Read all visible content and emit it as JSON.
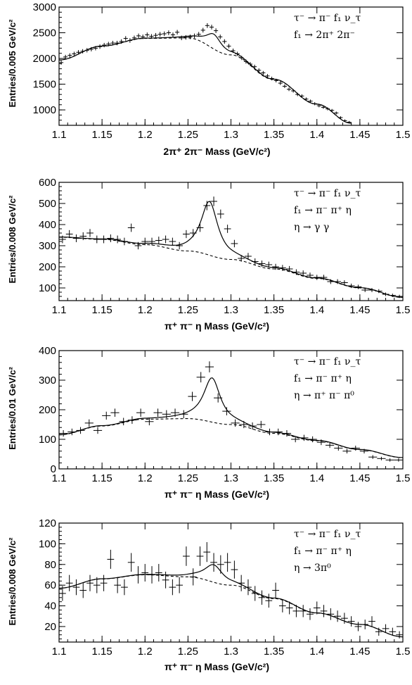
{
  "chart_data": [
    {
      "type": "scatter",
      "xlabel": "2π⁺ 2π⁻ Mass (GeV/c²)",
      "ylabel": "Entries/0.005 GeV/c²",
      "xlim": [
        1.1,
        1.5
      ],
      "ylim": [
        700,
        3000
      ],
      "x_ticks": [
        "1.1",
        "1.15",
        "1.2",
        "1.25",
        "1.3",
        "1.35",
        "1.4",
        "1.45",
        "1.5"
      ],
      "y_ticks": [
        "1000",
        "1500",
        "2000",
        "2500",
        "3000"
      ],
      "annotations": [
        "τ⁻ → π⁻ f₁ ν_τ",
        "f₁ → 2π⁺ 2π⁻"
      ],
      "peak": {
        "mean": 1.28,
        "width": 0.011,
        "height": 290
      },
      "background": [
        [
          1.1,
          1970
        ],
        [
          1.15,
          2240
        ],
        [
          1.2,
          2390
        ],
        [
          1.25,
          2400
        ],
        [
          1.3,
          2070
        ],
        [
          1.35,
          1590
        ],
        [
          1.4,
          1110
        ],
        [
          1.44,
          740
        ]
      ],
      "points": {
        "x": [
          1.1025,
          1.1075,
          1.1125,
          1.1175,
          1.1225,
          1.1275,
          1.1325,
          1.1375,
          1.1425,
          1.1475,
          1.1525,
          1.1575,
          1.1625,
          1.1675,
          1.1725,
          1.1775,
          1.1825,
          1.1875,
          1.1925,
          1.1975,
          1.2025,
          1.2075,
          1.2125,
          1.2175,
          1.2225,
          1.2275,
          1.2325,
          1.2375,
          1.2425,
          1.2475,
          1.2525,
          1.2575,
          1.2625,
          1.2675,
          1.2725,
          1.2775,
          1.2825,
          1.2875,
          1.2925,
          1.2975,
          1.3025,
          1.3075,
          1.3125,
          1.3175,
          1.3225,
          1.3275,
          1.3325,
          1.3375,
          1.3425,
          1.3475,
          1.3525,
          1.3575,
          1.3625,
          1.3675,
          1.3725,
          1.3775,
          1.3825,
          1.3875,
          1.3925,
          1.3975,
          1.4025,
          1.4075,
          1.4125,
          1.4175,
          1.4225,
          1.4275,
          1.4325,
          1.4375
        ],
        "y": [
          1920,
          2030,
          2060,
          2090,
          2120,
          2140,
          2160,
          2180,
          2200,
          2230,
          2260,
          2280,
          2300,
          2300,
          2330,
          2390,
          2350,
          2400,
          2440,
          2420,
          2460,
          2430,
          2450,
          2470,
          2480,
          2500,
          2460,
          2510,
          2400,
          2410,
          2420,
          2440,
          2470,
          2550,
          2640,
          2610,
          2540,
          2420,
          2330,
          2240,
          2150,
          2090,
          2010,
          1940,
          1890,
          1840,
          1770,
          1720,
          1660,
          1610,
          1570,
          1520,
          1460,
          1400,
          1370,
          1300,
          1270,
          1210,
          1170,
          1120,
          1080,
          1050,
          1020,
          990,
          940,
          850,
          790,
          760
        ]
      }
    },
    {
      "type": "scatter",
      "xlabel": "π⁺ π⁻ η Mass (GeV/c²)",
      "ylabel": "Entries/0.008 GeV/c²",
      "xlim": [
        1.1,
        1.5
      ],
      "ylim": [
        40,
        600
      ],
      "x_ticks": [
        "1.1",
        "1.15",
        "1.2",
        "1.25",
        "1.3",
        "1.35",
        "1.4",
        "1.45",
        "1.5"
      ],
      "y_ticks": [
        "100",
        "200",
        "300",
        "400",
        "500",
        "600"
      ],
      "annotations": [
        "τ⁻ → π⁻ f₁ ν_τ",
        "f₁ → π⁻ π⁺ η",
        "η → γ γ"
      ],
      "peak": {
        "mean": 1.275,
        "width": 0.012,
        "height": 255
      },
      "background": [
        [
          1.1,
          340
        ],
        [
          1.15,
          330
        ],
        [
          1.2,
          305
        ],
        [
          1.25,
          275
        ],
        [
          1.3,
          235
        ],
        [
          1.35,
          190
        ],
        [
          1.4,
          145
        ],
        [
          1.45,
          100
        ],
        [
          1.5,
          55
        ]
      ],
      "points": {
        "x": [
          1.104,
          1.112,
          1.12,
          1.128,
          1.136,
          1.144,
          1.152,
          1.16,
          1.168,
          1.176,
          1.184,
          1.192,
          1.2,
          1.208,
          1.216,
          1.224,
          1.232,
          1.24,
          1.248,
          1.256,
          1.264,
          1.272,
          1.28,
          1.288,
          1.296,
          1.304,
          1.312,
          1.32,
          1.328,
          1.336,
          1.344,
          1.352,
          1.36,
          1.368,
          1.376,
          1.384,
          1.392,
          1.4,
          1.408,
          1.416,
          1.424,
          1.432,
          1.44,
          1.448,
          1.456,
          1.464,
          1.472,
          1.48,
          1.488,
          1.496
        ],
        "y": [
          330,
          355,
          335,
          345,
          360,
          330,
          330,
          335,
          330,
          320,
          385,
          300,
          320,
          320,
          325,
          330,
          320,
          300,
          355,
          360,
          385,
          490,
          510,
          450,
          380,
          310,
          240,
          250,
          225,
          215,
          210,
          200,
          195,
          190,
          175,
          170,
          160,
          150,
          150,
          130,
          130,
          125,
          110,
          105,
          90,
          90,
          85,
          70,
          65,
          60
        ]
      }
    },
    {
      "type": "scatter",
      "xlabel": "π⁺ π⁻ η Mass (GeV/c²)",
      "ylabel": "Entries/0.01 GeV/c²",
      "xlim": [
        1.1,
        1.5
      ],
      "ylim": [
        0,
        400
      ],
      "x_ticks": [
        "1.1",
        "1.15",
        "1.2",
        "1.25",
        "1.3",
        "1.35",
        "1.4",
        "1.45",
        "1.5"
      ],
      "y_ticks": [
        "0",
        "100",
        "200",
        "300",
        "400"
      ],
      "annotations": [
        "τ⁻ → π⁻ f₁ ν_τ",
        "f₁ → π⁻ π⁺ η",
        "η → π⁺ π⁻ π⁰"
      ],
      "peak": {
        "mean": 1.278,
        "width": 0.012,
        "height": 150
      },
      "background": [
        [
          1.1,
          115
        ],
        [
          1.15,
          145
        ],
        [
          1.2,
          168
        ],
        [
          1.25,
          170
        ],
        [
          1.3,
          150
        ],
        [
          1.35,
          120
        ],
        [
          1.4,
          95
        ],
        [
          1.45,
          65
        ],
        [
          1.5,
          38
        ]
      ],
      "points": {
        "x": [
          1.105,
          1.115,
          1.125,
          1.135,
          1.145,
          1.155,
          1.165,
          1.175,
          1.185,
          1.195,
          1.205,
          1.215,
          1.225,
          1.235,
          1.245,
          1.255,
          1.265,
          1.275,
          1.285,
          1.295,
          1.305,
          1.315,
          1.325,
          1.335,
          1.345,
          1.355,
          1.365,
          1.375,
          1.385,
          1.395,
          1.405,
          1.415,
          1.425,
          1.435,
          1.445,
          1.455,
          1.465,
          1.475,
          1.485,
          1.495
        ],
        "y": [
          120,
          125,
          130,
          155,
          130,
          180,
          190,
          160,
          165,
          190,
          160,
          190,
          185,
          190,
          185,
          245,
          310,
          345,
          240,
          195,
          155,
          150,
          145,
          150,
          125,
          125,
          120,
          100,
          105,
          100,
          90,
          80,
          70,
          60,
          70,
          60,
          40,
          35,
          30,
          30
        ]
      }
    },
    {
      "type": "scatter",
      "xlabel": "π⁺ π⁻ η Mass (GeV/c²)",
      "ylabel": "Entries/0.008 GeV/c²",
      "xlim": [
        1.1,
        1.5
      ],
      "ylim": [
        5,
        120
      ],
      "x_ticks": [
        "1.1",
        "1.15",
        "1.2",
        "1.25",
        "1.3",
        "1.35",
        "1.4",
        "1.45",
        "1.5"
      ],
      "y_ticks": [
        "20",
        "40",
        "60",
        "80",
        "100",
        "120"
      ],
      "annotations": [
        "τ⁻ → π⁻ f₁ ν_τ",
        "f₁ → π⁻ π⁺ η",
        "η → 3π⁰"
      ],
      "peak": {
        "mean": 1.28,
        "width": 0.013,
        "height": 17
      },
      "background": [
        [
          1.1,
          57
        ],
        [
          1.15,
          66
        ],
        [
          1.2,
          70
        ],
        [
          1.25,
          68
        ],
        [
          1.3,
          60
        ],
        [
          1.35,
          47
        ],
        [
          1.4,
          33
        ],
        [
          1.45,
          22
        ],
        [
          1.5,
          10
        ]
      ],
      "points": {
        "x": [
          1.104,
          1.112,
          1.12,
          1.128,
          1.136,
          1.144,
          1.152,
          1.16,
          1.168,
          1.176,
          1.184,
          1.192,
          1.2,
          1.208,
          1.216,
          1.224,
          1.232,
          1.24,
          1.248,
          1.256,
          1.264,
          1.272,
          1.28,
          1.288,
          1.296,
          1.304,
          1.312,
          1.32,
          1.328,
          1.336,
          1.344,
          1.352,
          1.36,
          1.368,
          1.376,
          1.384,
          1.392,
          1.4,
          1.408,
          1.416,
          1.424,
          1.432,
          1.44,
          1.448,
          1.456,
          1.464,
          1.472,
          1.48,
          1.488,
          1.496
        ],
        "y": [
          52,
          62,
          58,
          55,
          62,
          60,
          62,
          85,
          60,
          58,
          82,
          70,
          72,
          70,
          72,
          65,
          58,
          60,
          88,
          68,
          88,
          92,
          82,
          80,
          82,
          75,
          62,
          58,
          52,
          48,
          45,
          55,
          40,
          38,
          35,
          35,
          32,
          38,
          35,
          32,
          30,
          28,
          25,
          20,
          22,
          25,
          15,
          18,
          15,
          12
        ]
      }
    }
  ]
}
